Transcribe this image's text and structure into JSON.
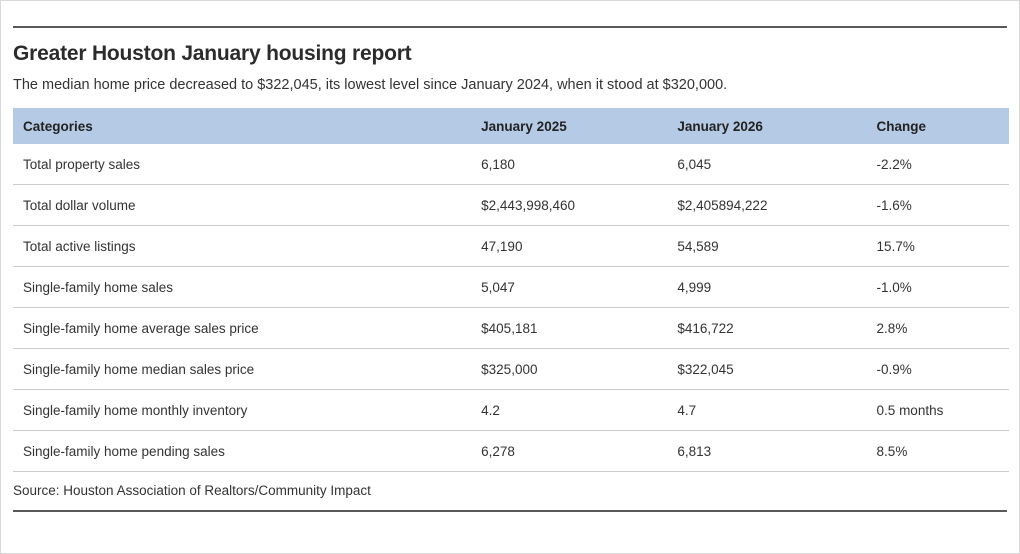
{
  "chart_data": {
    "type": "table",
    "title": "Greater Houston January housing report",
    "subtitle": "The median home price decreased to $322,045, its lowest level since January 2024, when it stood at $320,000.",
    "columns": [
      "Categories",
      "January 2025",
      "January 2026",
      "Change"
    ],
    "rows": [
      {
        "category": "Total property sales",
        "jan2025": "6,180",
        "jan2026": "6,045",
        "change": "-2.2%"
      },
      {
        "category": "Total dollar volume",
        "jan2025": "$2,443,998,460",
        "jan2026": "$2,405894,222",
        "change": "-1.6%"
      },
      {
        "category": "Total active listings",
        "jan2025": "47,190",
        "jan2026": "54,589",
        "change": "15.7%"
      },
      {
        "category": "Single-family home sales",
        "jan2025": "5,047",
        "jan2026": "4,999",
        "change": "-1.0%"
      },
      {
        "category": "Single-family home average sales price",
        "jan2025": "$405,181",
        "jan2026": "$416,722",
        "change": "2.8%"
      },
      {
        "category": "Single-family home median sales price",
        "jan2025": "$325,000",
        "jan2026": "$322,045",
        "change": "-0.9%"
      },
      {
        "category": "Single-family home monthly inventory",
        "jan2025": "4.2",
        "jan2026": "4.7",
        "change": "0.5 months"
      },
      {
        "category": "Single-family home pending sales",
        "jan2025": "6,278",
        "jan2026": "6,813",
        "change": "8.5%"
      }
    ],
    "source": "Source: Houston Association of Realtors/Community Impact",
    "layout": {
      "header_bg": "#b5cbe5",
      "rule_color": "#58595b",
      "row_divider_color": "#cbcbcb",
      "legend_position": "none",
      "grid": "horizontal-row-dividers-only"
    }
  }
}
